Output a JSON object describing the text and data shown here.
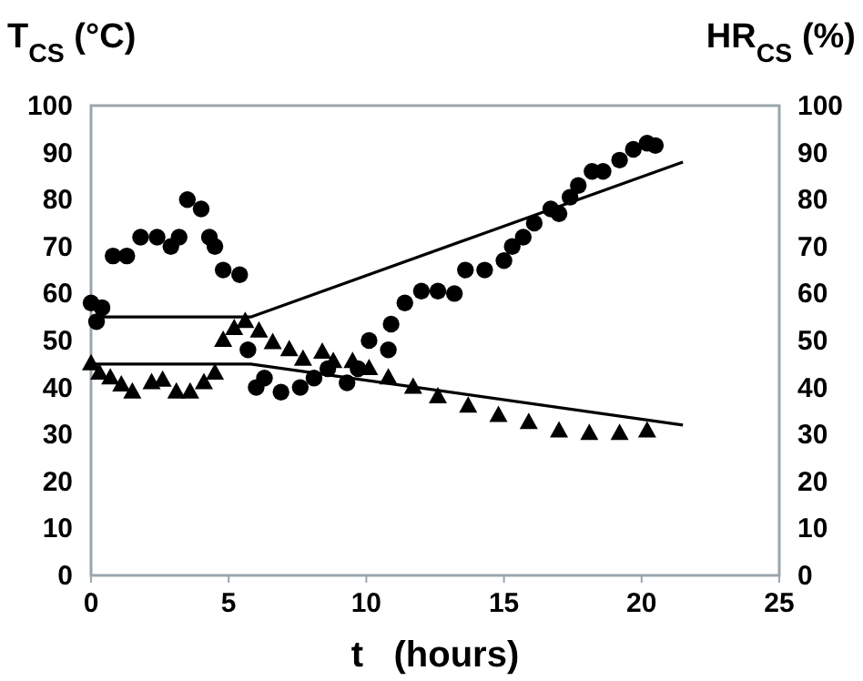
{
  "chart_data": {
    "type": "scatter",
    "xlabel": "t (hours)",
    "ylabel": "T$_{CS}$ (°C)",
    "y2label": "HR$_{CS}$ (%)",
    "xlim": [
      0,
      25
    ],
    "xticks": [
      0,
      5,
      10,
      15,
      20,
      25
    ],
    "ylim": [
      0,
      100
    ],
    "yticks": [
      0,
      10,
      20,
      30,
      40,
      50,
      60,
      70,
      80,
      90,
      100
    ],
    "y2lim": [
      0,
      100
    ],
    "y2ticks": [
      0,
      10,
      20,
      30,
      40,
      50,
      60,
      70,
      80,
      90,
      100
    ],
    "grid": false,
    "series": [
      {
        "marker": "circle",
        "color": "#000000",
        "x": [
          0,
          0.4,
          0.2,
          0.8,
          1.3,
          1.8,
          2.4,
          2.9,
          3.2,
          3.5,
          4.0,
          4.3,
          4.5,
          4.8,
          5.4,
          5.7,
          6.0,
          6.3,
          6.9,
          7.6,
          8.1,
          8.6,
          9.3,
          9.7,
          10.1,
          10.8,
          10.9,
          11.4,
          12.0,
          12.6,
          13.2,
          13.6,
          14.3,
          15.0,
          15.3,
          15.7,
          16.1,
          16.7,
          17.0,
          17.4,
          17.7,
          18.2,
          18.6,
          19.2,
          19.7,
          20.2,
          20.5
        ],
        "values": [
          58,
          57,
          54,
          68,
          68,
          72,
          72,
          70,
          72,
          80,
          78,
          72,
          70,
          65,
          64,
          48,
          40,
          42,
          39,
          40,
          42,
          44,
          41,
          44,
          50,
          48,
          53.5,
          58,
          60.5,
          60.5,
          60,
          65,
          65,
          67,
          70,
          72,
          75,
          78,
          77,
          80.5,
          83,
          86,
          86,
          88.4,
          90.7,
          92,
          91.5
        ]
      },
      {
        "marker": "triangle",
        "color": "#000000",
        "x": [
          0,
          0.3,
          0.7,
          1.1,
          1.5,
          2.2,
          2.6,
          3.1,
          3.6,
          4.1,
          4.5,
          4.8,
          5.2,
          5.6,
          6.1,
          6.6,
          7.2,
          7.7,
          8.4,
          8.8,
          9.5,
          10.1,
          10.8,
          11.7,
          12.6,
          13.7,
          14.8,
          15.9,
          17.0,
          18.1,
          19.2,
          20.2
        ],
        "values": [
          45,
          43,
          42,
          40.5,
          39,
          41,
          41.5,
          39,
          39,
          41,
          43,
          50,
          52.5,
          54,
          52,
          49.5,
          48,
          46,
          47.5,
          45.5,
          45.5,
          44,
          42,
          40,
          38,
          36,
          34,
          32.5,
          30.7,
          30.2,
          30.2,
          30.7
        ]
      },
      {
        "type": "line",
        "marker": "none",
        "line_style": "solid",
        "color": "#000000",
        "x": [
          0,
          5.8,
          21.5
        ],
        "values": [
          55,
          55,
          88
        ]
      },
      {
        "type": "line",
        "marker": "none",
        "line_style": "solid",
        "color": "#000000",
        "x": [
          0,
          5.8,
          21.5
        ],
        "values": [
          45,
          45,
          32
        ]
      }
    ]
  }
}
